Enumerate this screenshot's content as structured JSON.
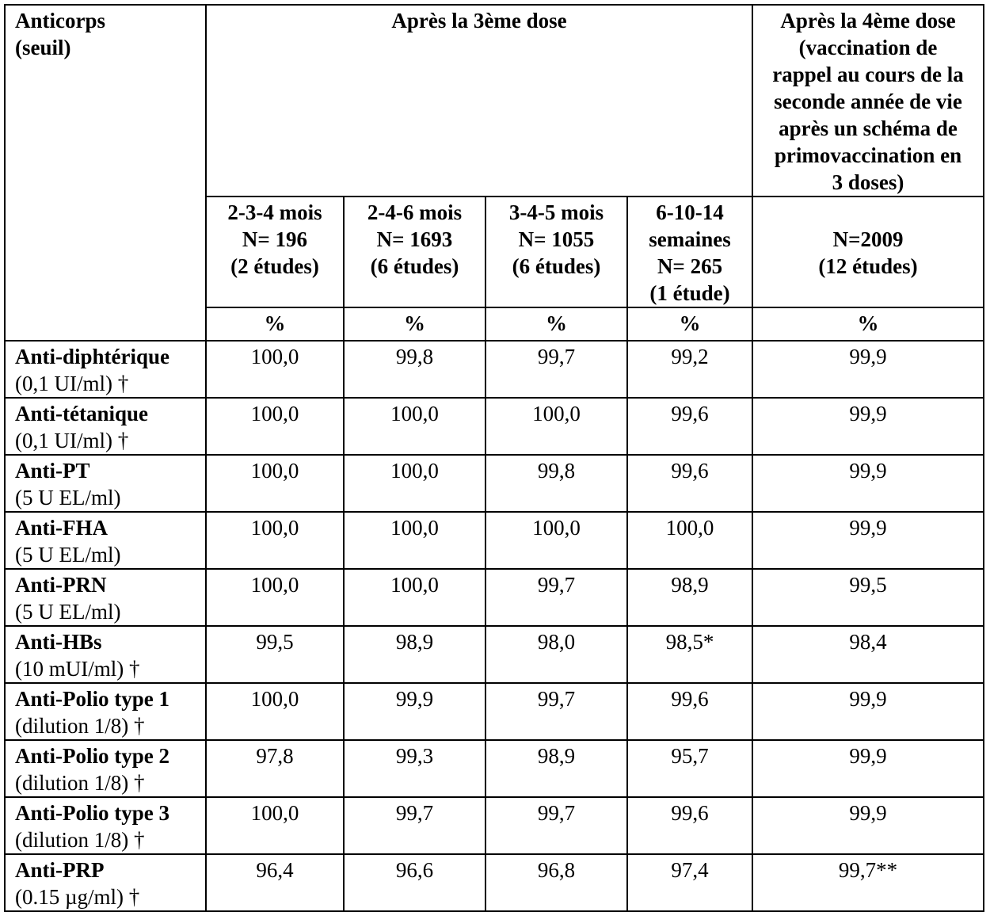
{
  "header": {
    "antibody_label": [
      "Anticorps",
      "(seuil)"
    ],
    "after_dose3": "Après la 3ème dose",
    "after_dose4": [
      "Après la 4ème dose",
      "(vaccination de",
      "rappel au cours de la",
      "seconde année de vie",
      "après un schéma de",
      "primovaccination en",
      "3 doses)"
    ],
    "groups": [
      [
        "2-3-4 mois",
        "N= 196",
        "(2 études)"
      ],
      [
        "2-4-6 mois",
        "N= 1693",
        "(6 études)"
      ],
      [
        "3-4-5 mois",
        "N= 1055",
        "(6 études)"
      ],
      [
        "6-10-14",
        "semaines",
        "N= 265",
        "(1 étude)"
      ],
      [
        "N=2009",
        "(12 études)"
      ]
    ],
    "unit": "%"
  },
  "rows": [
    {
      "name": "Anti-diphtérique",
      "threshold": "(0,1 UI/ml) †",
      "values": [
        "100,0",
        "99,8",
        "99,7",
        "99,2",
        "99,9"
      ]
    },
    {
      "name": "Anti-tétanique",
      "threshold": "(0,1 UI/ml) †",
      "values": [
        "100,0",
        "100,0",
        "100,0",
        "99,6",
        "99,9"
      ]
    },
    {
      "name": "Anti-PT",
      "threshold": "(5 U EL/ml)",
      "values": [
        "100,0",
        "100,0",
        "99,8",
        "99,6",
        "99,9"
      ]
    },
    {
      "name": "Anti-FHA",
      "threshold": "(5 U EL/ml)",
      "values": [
        "100,0",
        "100,0",
        "100,0",
        "100,0",
        "99,9"
      ]
    },
    {
      "name": "Anti-PRN",
      "threshold": "(5 U EL/ml)",
      "values": [
        "100,0",
        "100,0",
        "99,7",
        "98,9",
        "99,5"
      ]
    },
    {
      "name": "Anti-HBs",
      "threshold": "(10 mUI/ml) †",
      "values": [
        "99,5",
        "98,9",
        "98,0",
        "98,5*",
        "98,4"
      ]
    },
    {
      "name": "Anti-Polio type 1",
      "threshold": "(dilution 1/8) †",
      "values": [
        "100,0",
        "99,9",
        "99,7",
        "99,6",
        "99,9"
      ]
    },
    {
      "name": "Anti-Polio type 2",
      "threshold": "(dilution 1/8) †",
      "values": [
        "97,8",
        "99,3",
        "98,9",
        "95,7",
        "99,9"
      ]
    },
    {
      "name": "Anti-Polio type 3",
      "threshold": "(dilution 1/8) †",
      "values": [
        "100,0",
        "99,7",
        "99,7",
        "99,6",
        "99,9"
      ]
    },
    {
      "name": "Anti-PRP",
      "threshold": "(0.15 µg/ml) †",
      "values": [
        "96,4",
        "96,6",
        "96,8",
        "97,4",
        "99,7**"
      ]
    }
  ]
}
